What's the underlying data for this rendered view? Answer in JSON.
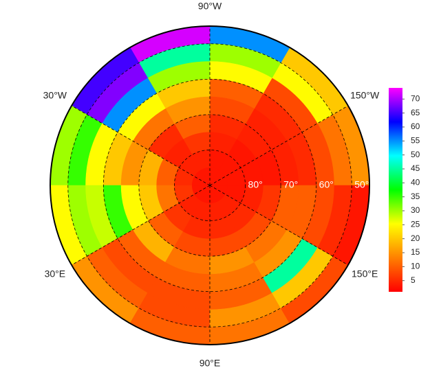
{
  "map": {
    "projection": "north polar stereographic",
    "lat_edges": [
      45,
      50,
      55,
      60,
      65,
      70,
      75,
      80,
      85,
      90
    ],
    "lon_edges": [
      -180,
      -150,
      -120,
      -90,
      -60,
      -30,
      0,
      30,
      60,
      90,
      120,
      150,
      180
    ],
    "values": [
      [
        15,
        12,
        8,
        5,
        4,
        3,
        3,
        3,
        3
      ],
      [
        20,
        25,
        8,
        5,
        4,
        4,
        3,
        3,
        3
      ],
      [
        55,
        30,
        25,
        10,
        8,
        5,
        4,
        3,
        3
      ],
      [
        72,
        45,
        30,
        20,
        15,
        10,
        6,
        4,
        3
      ],
      [
        65,
        68,
        55,
        25,
        12,
        5,
        4,
        4,
        3
      ],
      [
        30,
        35,
        25,
        20,
        15,
        18,
        10,
        5,
        3
      ],
      [
        25,
        30,
        28,
        35,
        25,
        20,
        12,
        6,
        3
      ],
      [
        15,
        10,
        8,
        10,
        18,
        10,
        6,
        4,
        3
      ],
      [
        10,
        8,
        8,
        10,
        12,
        8,
        5,
        4,
        3
      ],
      [
        12,
        15,
        10,
        12,
        15,
        8,
        5,
        4,
        3
      ],
      [
        8,
        20,
        45,
        15,
        12,
        8,
        5,
        4,
        3
      ],
      [
        3,
        5,
        8,
        10,
        10,
        6,
        4,
        3,
        3
      ]
    ],
    "meridians": [
      {
        "lon": -90,
        "label": "90°W"
      },
      {
        "lon": -30,
        "label": "30°W"
      },
      {
        "lon": -150,
        "label": "150°W"
      },
      {
        "lon": 30,
        "label": "30°E"
      },
      {
        "lon": 150,
        "label": "150°E"
      },
      {
        "lon": 90,
        "label": "90°E"
      }
    ],
    "parallels": [
      {
        "lat": 80,
        "label": "80°"
      },
      {
        "lat": 70,
        "label": "70°"
      },
      {
        "lat": 60,
        "label": "60°"
      },
      {
        "lat": 50,
        "label": "50°"
      }
    ],
    "colorbar": {
      "clim": [
        1,
        74
      ],
      "ticks": [
        5,
        10,
        15,
        20,
        25,
        30,
        35,
        40,
        45,
        50,
        55,
        60,
        65,
        70
      ],
      "colormap": [
        "#ff0000",
        "#ff4000",
        "#ff8000",
        "#ffc000",
        "#ffff00",
        "#80ff00",
        "#00ff00",
        "#00ff80",
        "#00ffff",
        "#0080ff",
        "#0000ff",
        "#8000ff",
        "#ff00ff"
      ]
    }
  }
}
